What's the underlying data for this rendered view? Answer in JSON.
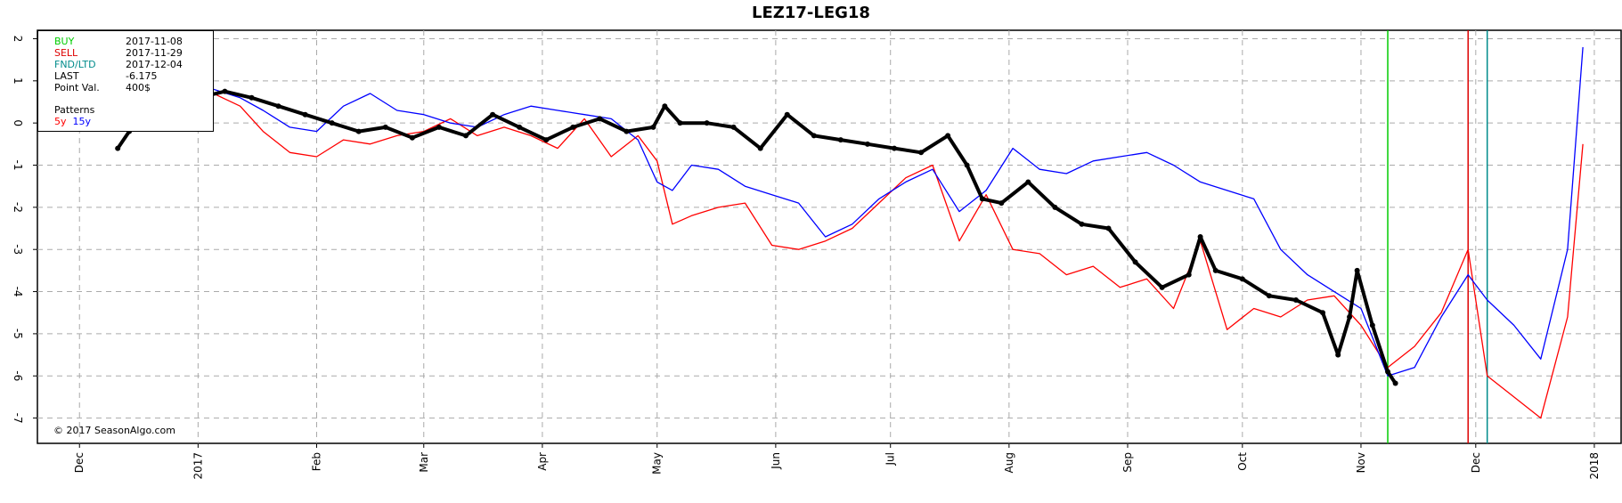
{
  "chart_data": {
    "type": "line",
    "title": "LEZ17-LEG18",
    "xlabel": "",
    "ylabel": "",
    "x_range": [
      "2016-11-20",
      "2018-01-08"
    ],
    "ylim": [
      -7.6,
      2.2
    ],
    "y_ticks": [
      -7,
      -6,
      -5,
      -4,
      -3,
      -2,
      -1,
      0,
      1,
      2
    ],
    "x_tick_labels": [
      {
        "date": "2016-12-01",
        "label": "Dec"
      },
      {
        "date": "2017-01-01",
        "label": "2017"
      },
      {
        "date": "2017-02-01",
        "label": "Feb"
      },
      {
        "date": "2017-03-01",
        "label": "Mar"
      },
      {
        "date": "2017-04-01",
        "label": "Apr"
      },
      {
        "date": "2017-05-01",
        "label": "May"
      },
      {
        "date": "2017-06-01",
        "label": "Jun"
      },
      {
        "date": "2017-07-01",
        "label": "Jul"
      },
      {
        "date": "2017-08-01",
        "label": "Aug"
      },
      {
        "date": "2017-09-01",
        "label": "Sep"
      },
      {
        "date": "2017-10-01",
        "label": "Oct"
      },
      {
        "date": "2017-11-01",
        "label": "Nov"
      },
      {
        "date": "2017-12-01",
        "label": "Dec"
      },
      {
        "date": "2018-01-01",
        "label": "2018"
      }
    ],
    "grid": true,
    "legend_position": "top-left",
    "vertical_lines": [
      {
        "label": "BUY",
        "date": "2017-11-08",
        "color": "#00cc00"
      },
      {
        "label": "SELL",
        "date": "2017-11-29",
        "color": "#dd0000"
      },
      {
        "label": "FND/LTD",
        "date": "2017-12-04",
        "color": "#008b8b"
      }
    ],
    "series": [
      {
        "name": "5y",
        "color": "#ff0000",
        "x": [
          "2017-01-05",
          "2017-01-12",
          "2017-01-18",
          "2017-01-25",
          "2017-02-01",
          "2017-02-08",
          "2017-02-15",
          "2017-02-22",
          "2017-03-01",
          "2017-03-08",
          "2017-03-15",
          "2017-03-22",
          "2017-03-29",
          "2017-04-05",
          "2017-04-12",
          "2017-04-19",
          "2017-04-26",
          "2017-05-01",
          "2017-05-05",
          "2017-05-10",
          "2017-05-17",
          "2017-05-24",
          "2017-05-31",
          "2017-06-07",
          "2017-06-14",
          "2017-06-21",
          "2017-06-28",
          "2017-07-05",
          "2017-07-12",
          "2017-07-19",
          "2017-07-26",
          "2017-08-02",
          "2017-08-09",
          "2017-08-16",
          "2017-08-23",
          "2017-08-30",
          "2017-09-06",
          "2017-09-13",
          "2017-09-20",
          "2017-09-27",
          "2017-10-04",
          "2017-10-11",
          "2017-10-18",
          "2017-10-25",
          "2017-11-01",
          "2017-11-08",
          "2017-11-15",
          "2017-11-22",
          "2017-11-29",
          "2017-12-04",
          "2017-12-11",
          "2017-12-18",
          "2017-12-25",
          "2017-12-29"
        ],
        "values": [
          0.7,
          0.4,
          -0.2,
          -0.7,
          -0.8,
          -0.4,
          -0.5,
          -0.3,
          -0.2,
          0.1,
          -0.3,
          -0.1,
          -0.3,
          -0.6,
          0.1,
          -0.8,
          -0.3,
          -0.9,
          -2.4,
          -2.2,
          -2.0,
          -1.9,
          -2.9,
          -3.0,
          -2.8,
          -2.5,
          -1.9,
          -1.3,
          -1.0,
          -2.8,
          -1.7,
          -3.0,
          -3.1,
          -3.6,
          -3.4,
          -3.9,
          -3.7,
          -4.4,
          -2.8,
          -4.9,
          -4.4,
          -4.6,
          -4.2,
          -4.1,
          -4.8,
          -5.8,
          -5.3,
          -4.5,
          -3.0,
          -6.0,
          -6.5,
          -7.0,
          -4.6,
          -0.5
        ]
      },
      {
        "name": "15y",
        "color": "#0000ff",
        "x": [
          "2017-01-05",
          "2017-01-12",
          "2017-01-18",
          "2017-01-25",
          "2017-02-01",
          "2017-02-08",
          "2017-02-15",
          "2017-02-22",
          "2017-03-01",
          "2017-03-08",
          "2017-03-15",
          "2017-03-22",
          "2017-03-29",
          "2017-04-05",
          "2017-04-12",
          "2017-04-19",
          "2017-04-26",
          "2017-05-01",
          "2017-05-05",
          "2017-05-10",
          "2017-05-17",
          "2017-05-24",
          "2017-05-31",
          "2017-06-07",
          "2017-06-14",
          "2017-06-21",
          "2017-06-28",
          "2017-07-05",
          "2017-07-12",
          "2017-07-19",
          "2017-07-26",
          "2017-08-02",
          "2017-08-09",
          "2017-08-16",
          "2017-08-23",
          "2017-08-30",
          "2017-09-06",
          "2017-09-13",
          "2017-09-20",
          "2017-09-27",
          "2017-10-04",
          "2017-10-11",
          "2017-10-18",
          "2017-10-25",
          "2017-11-01",
          "2017-11-08",
          "2017-11-15",
          "2017-11-22",
          "2017-11-29",
          "2017-12-04",
          "2017-12-11",
          "2017-12-18",
          "2017-12-25",
          "2017-12-29"
        ],
        "values": [
          0.8,
          0.6,
          0.3,
          -0.1,
          -0.2,
          0.4,
          0.7,
          0.3,
          0.2,
          0.0,
          -0.1,
          0.2,
          0.4,
          0.3,
          0.2,
          0.1,
          -0.4,
          -1.4,
          -1.6,
          -1.0,
          -1.1,
          -1.5,
          -1.7,
          -1.9,
          -2.7,
          -2.4,
          -1.8,
          -1.4,
          -1.1,
          -2.1,
          -1.6,
          -0.6,
          -1.1,
          -1.2,
          -0.9,
          -0.8,
          -0.7,
          -1.0,
          -1.4,
          -1.6,
          -1.8,
          -3.0,
          -3.6,
          -4.0,
          -4.4,
          -6.0,
          -5.8,
          -4.6,
          -3.6,
          -4.2,
          -4.8,
          -5.6,
          -3.0,
          1.8
        ]
      },
      {
        "name": "LEZ17-LEG18",
        "color": "#000000",
        "x": [
          "2016-12-11",
          "2016-12-14",
          "2016-12-18",
          "2016-12-25",
          "2017-01-01",
          "2017-01-08",
          "2017-01-15",
          "2017-01-22",
          "2017-01-29",
          "2017-02-05",
          "2017-02-12",
          "2017-02-19",
          "2017-02-26",
          "2017-03-05",
          "2017-03-12",
          "2017-03-19",
          "2017-03-26",
          "2017-04-02",
          "2017-04-09",
          "2017-04-16",
          "2017-04-23",
          "2017-04-30",
          "2017-05-03",
          "2017-05-07",
          "2017-05-14",
          "2017-05-21",
          "2017-05-28",
          "2017-06-04",
          "2017-06-11",
          "2017-06-18",
          "2017-06-25",
          "2017-07-02",
          "2017-07-09",
          "2017-07-16",
          "2017-07-21",
          "2017-07-25",
          "2017-07-30",
          "2017-08-06",
          "2017-08-13",
          "2017-08-20",
          "2017-08-27",
          "2017-09-03",
          "2017-09-10",
          "2017-09-17",
          "2017-09-20",
          "2017-09-24",
          "2017-10-01",
          "2017-10-08",
          "2017-10-15",
          "2017-10-22",
          "2017-10-26",
          "2017-10-29",
          "2017-10-31",
          "2017-11-04",
          "2017-11-08",
          "2017-11-10"
        ],
        "values": [
          -0.6,
          -0.2,
          0.2,
          0.5,
          0.6,
          0.75,
          0.6,
          0.4,
          0.2,
          0.0,
          -0.2,
          -0.1,
          -0.35,
          -0.1,
          -0.3,
          0.2,
          -0.1,
          -0.4,
          -0.1,
          0.1,
          -0.2,
          -0.1,
          0.4,
          0.0,
          0.0,
          -0.1,
          -0.6,
          0.2,
          -0.3,
          -0.4,
          -0.5,
          -0.6,
          -0.7,
          -0.3,
          -1.0,
          -1.8,
          -1.9,
          -1.4,
          -2.0,
          -2.4,
          -2.5,
          -3.3,
          -3.9,
          -3.6,
          -2.7,
          -3.5,
          -3.7,
          -4.1,
          -4.2,
          -4.5,
          -5.5,
          -4.6,
          -3.5,
          -4.8,
          -5.9,
          -6.175
        ]
      }
    ]
  },
  "legend": {
    "buy_label": "BUY",
    "buy_date": "2017-11-08",
    "sell_label": "SELL",
    "sell_date": "2017-11-29",
    "fnd_label": "FND/LTD",
    "fnd_date": "2017-12-04",
    "last_label": "LAST",
    "last_value": "-6.175",
    "point_label": "Point Val.",
    "point_value": "400$",
    "patterns_label": "Patterns",
    "pattern_5y": "5y",
    "pattern_15y": "15y"
  },
  "copyright": "© 2017 SeasonAlgo.com",
  "colors": {
    "buy": "#00cc00",
    "sell": "#dd0000",
    "fnd": "#008b8b",
    "five_y": "#ff0000",
    "fifteen_y": "#0000ff",
    "main": "#000000"
  }
}
